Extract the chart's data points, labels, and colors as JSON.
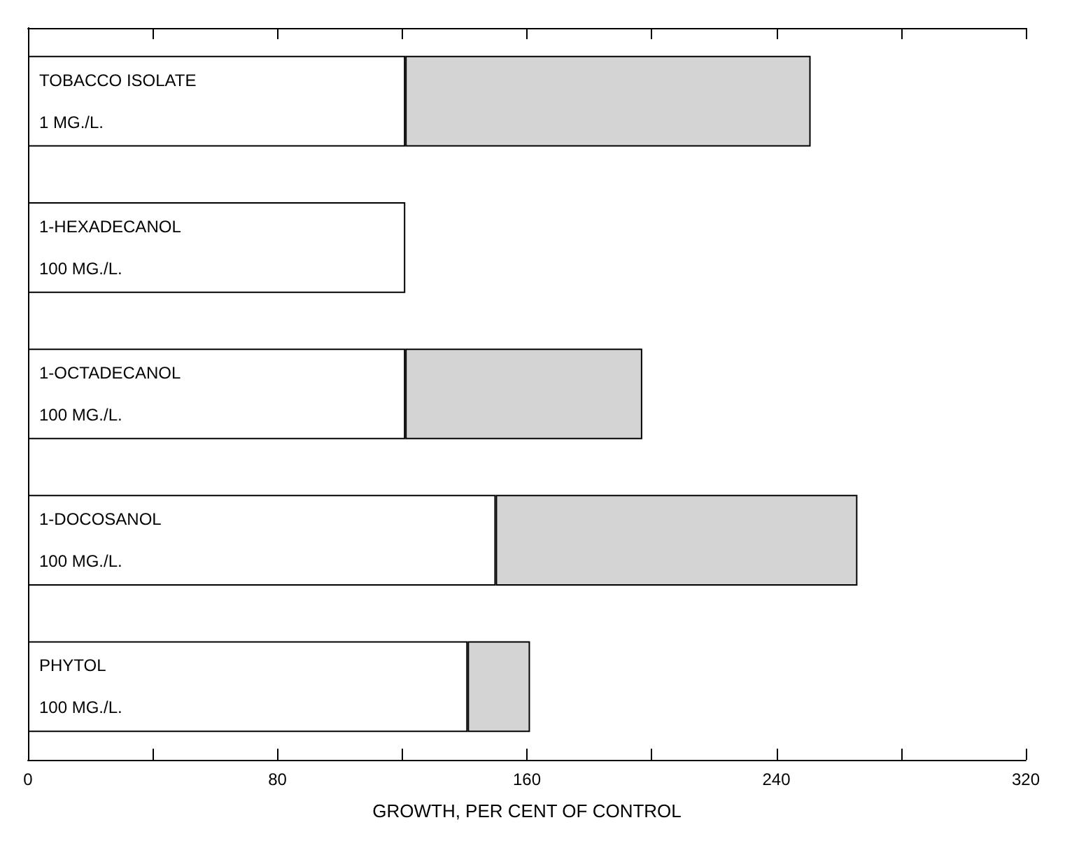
{
  "chart_data": {
    "type": "bar",
    "orientation": "horizontal",
    "stacked": true,
    "xlabel": "GROWTH, PER CENT OF CONTROL",
    "categories": [
      "TOBACCO ISOLATE\n1 MG./L.",
      "1-HEXADECANOL\n100 MG./L.",
      "1-OCTADECANOL\n100 MG./L.",
      "1-DOCOSANOL\n100 MG./L.",
      "PHYTOL\n100 MG./L."
    ],
    "series": [
      {
        "color": "#ffffff",
        "values": [
          121,
          121,
          121,
          150,
          141
        ]
      },
      {
        "color": "#d4d4d4",
        "values": [
          130,
          null,
          76,
          116,
          20
        ]
      }
    ],
    "xlim": [
      0,
      320
    ],
    "xticks": [
      0,
      {
        "value": 40,
        "label": null
      },
      80,
      {
        "value": 120,
        "label": null
      },
      160,
      {
        "value": 200,
        "label": null
      },
      240,
      {
        "value": 280,
        "label": null
      },
      320
    ]
  }
}
